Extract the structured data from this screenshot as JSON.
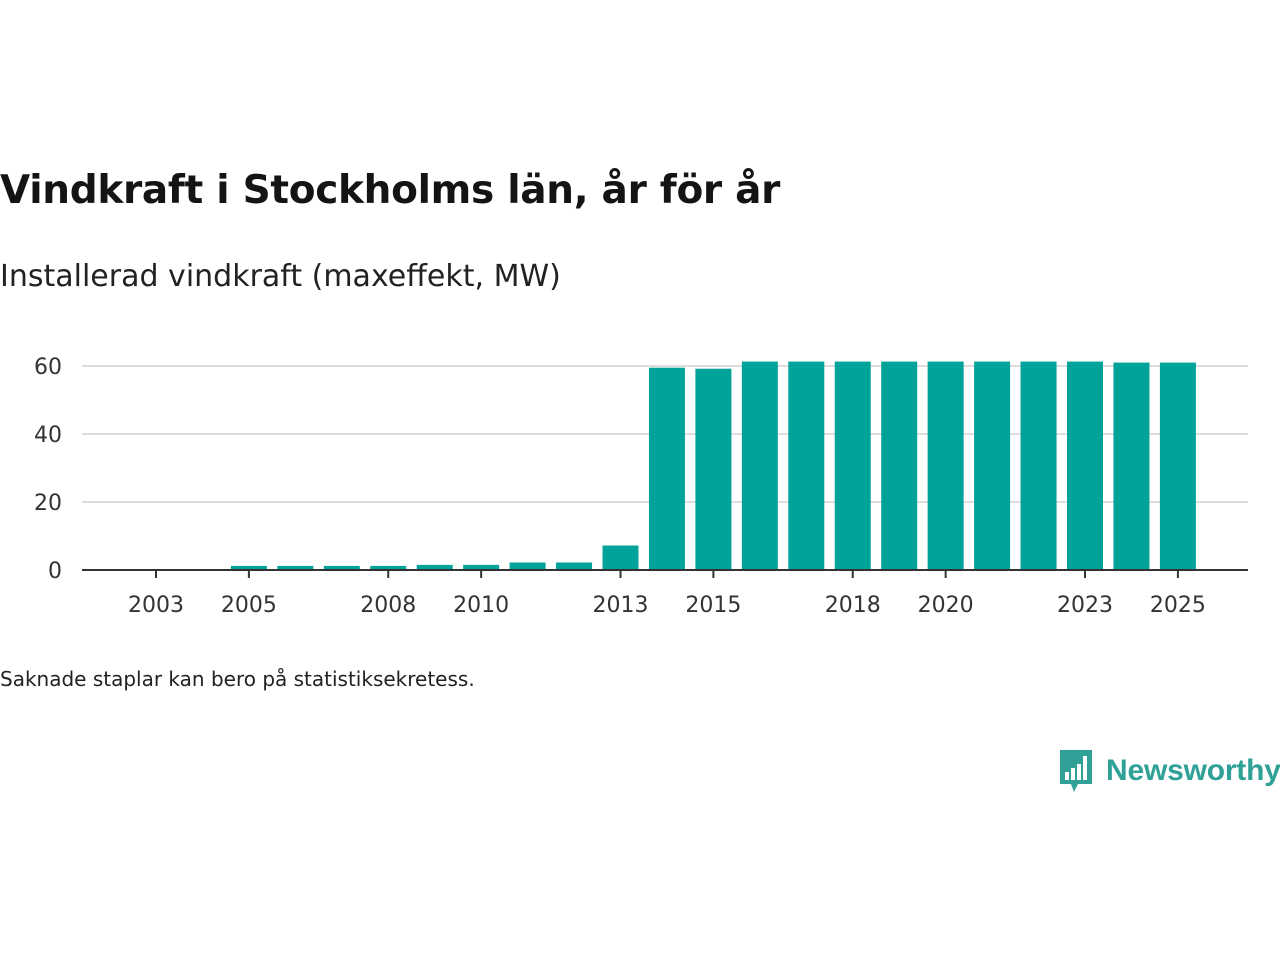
{
  "header": {
    "title": "Vindkraft i Stockholms län, år för år",
    "subtitle": "Installerad vindkraft (maxeffekt, MW)"
  },
  "footer": {
    "note": "Saknade staplar kan bero på statistiksekretess.",
    "brand": "Newsworthy",
    "brand_icon": "bar-chart-speech-bubble-icon"
  },
  "colors": {
    "bar": "#00a39a",
    "grid": "#dddddd",
    "axis": "#333333",
    "brand": "#2fa197"
  },
  "chart_data": {
    "type": "bar",
    "title": "Vindkraft i Stockholms län, år för år",
    "ylabel": "Installerad vindkraft (maxeffekt, MW)",
    "xlabel": "",
    "categories": [
      "2003",
      "2004",
      "2005",
      "2006",
      "2007",
      "2008",
      "2009",
      "2010",
      "2011",
      "2012",
      "2013",
      "2014",
      "2015",
      "2016",
      "2017",
      "2018",
      "2019",
      "2020",
      "2021",
      "2022",
      "2023",
      "2024",
      "2025"
    ],
    "values": [
      0,
      0,
      1.2,
      1.2,
      1.2,
      1.2,
      1.5,
      1.5,
      2.2,
      2.2,
      7.2,
      59.5,
      59.2,
      61.3,
      61.3,
      61.3,
      61.3,
      61.3,
      61.3,
      61.3,
      61.3,
      61.0,
      61.0
    ],
    "x_tick_labels": [
      "2003",
      "2005",
      "2008",
      "2010",
      "2013",
      "2015",
      "2018",
      "2020",
      "2023",
      "2025"
    ],
    "y_ticks": [
      0,
      20,
      40,
      60
    ],
    "ylim": [
      0,
      60
    ],
    "grid": true,
    "legend": "none"
  }
}
